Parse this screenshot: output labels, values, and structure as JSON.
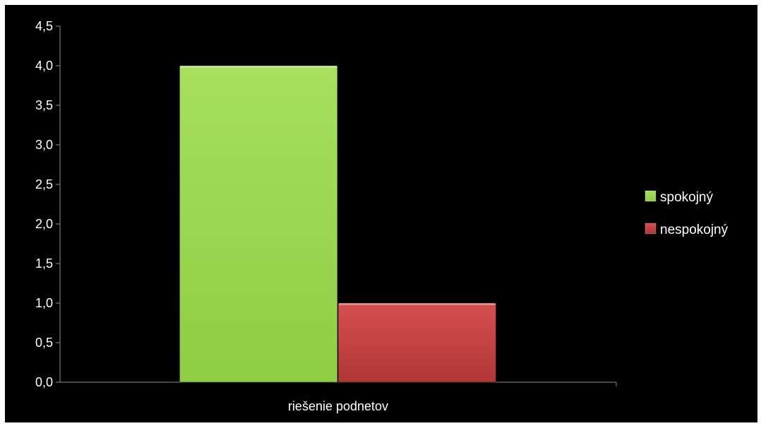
{
  "chart_data": {
    "type": "bar",
    "categories": [
      "riešenie podnetov"
    ],
    "series": [
      {
        "name": "spokojný",
        "values": [
          4.0
        ],
        "color": "#9bd94f"
      },
      {
        "name": "nespokojný",
        "values": [
          1.0
        ],
        "color": "#c84343"
      }
    ],
    "ylim": [
      0,
      4.5
    ],
    "yticks": [
      "0,0",
      "0,5",
      "1,0",
      "1,5",
      "2,0",
      "2,5",
      "3,0",
      "3,5",
      "4,0",
      "4,5"
    ],
    "xlabel": "",
    "ylabel": "",
    "title": "",
    "grid": false,
    "legend": {
      "position": "right"
    },
    "background": "#000000"
  }
}
